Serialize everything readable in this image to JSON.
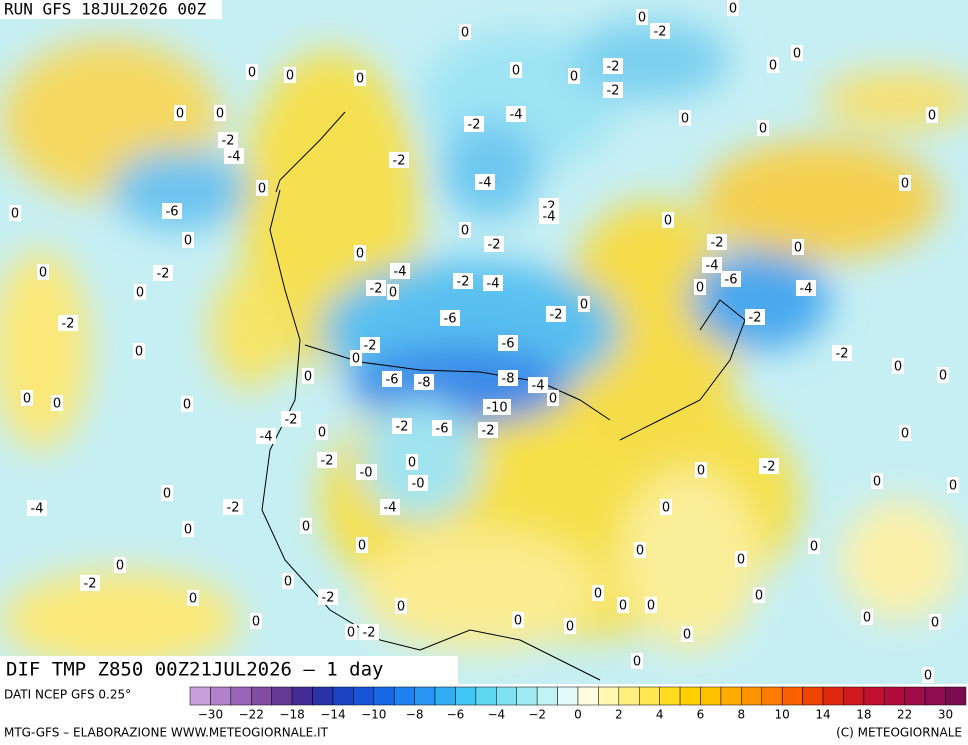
{
  "header": {
    "run": "RUN GFS 18JUL2026 00Z"
  },
  "map": {
    "contour_labels": [
      "0",
      "0",
      "0",
      "0",
      "0",
      "0",
      "-2",
      "-4",
      "0",
      "-6",
      "0",
      "0",
      "0",
      "-2",
      "0",
      "-2",
      "0",
      "0",
      "0",
      "0",
      "-4",
      "-2",
      "0",
      "0",
      "-2",
      "-2",
      "0",
      "-4",
      "0",
      "-2",
      "-4",
      "-2",
      "0",
      "-4",
      "-2",
      "-4",
      "-2",
      "-2",
      "-4",
      "0",
      "0",
      "-2",
      "-2",
      "0",
      "-0",
      "-2",
      "0",
      "0",
      "0",
      "0",
      "0",
      "0",
      "0",
      "0",
      "-2",
      "-4",
      "0",
      "-6",
      "-4",
      "0",
      "-2",
      "-2",
      "0",
      "0",
      "0",
      "0",
      "-2",
      "-6",
      "-6",
      "-6",
      "-8",
      "-8",
      "-4",
      "0",
      "-10",
      "-2",
      "-6",
      "-2",
      "0",
      "-2",
      "-0",
      "0",
      "-0",
      "-4",
      "0",
      "-4",
      "-2",
      "0",
      "0",
      "0",
      "0",
      "-2",
      "0",
      "-2",
      "0",
      "0",
      "0",
      "0",
      "-2",
      "0",
      "0",
      "0",
      "0",
      "0",
      "0",
      "0",
      "0",
      "0",
      "-2",
      "0",
      "0",
      "0",
      "0",
      "0",
      "0",
      "0",
      "0",
      "0"
    ]
  },
  "footer": {
    "title": "DIF TMP Z850 00Z21JUL2026 – 1 day",
    "source": "DATI NCEP GFS 0.25°",
    "credit_left": "MTG-GFS – ELABORAZIONE WWW.METEOGIORNALE.IT",
    "credit_right": "(C) METEOGIORNALE"
  },
  "colorbar": {
    "ticks": [
      "−30",
      "−22",
      "−18",
      "−14",
      "−10",
      "−8",
      "−6",
      "−4",
      "−2",
      "0",
      "2",
      "4",
      "6",
      "8",
      "10",
      "14",
      "18",
      "22",
      "30"
    ]
  }
}
